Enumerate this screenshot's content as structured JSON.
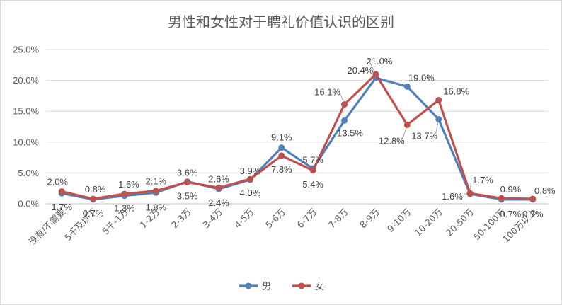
{
  "chart_data": {
    "type": "line",
    "title": "男性和女性对于聘礼价值认识的区别",
    "categories": [
      "没有/不需要",
      "5千及以下",
      "5千-1万",
      "1-2万",
      "2-3万",
      "3-4万",
      "4-5万",
      "5-6万",
      "6-7万",
      "7-8万",
      "8-9万",
      "9-10万",
      "10-20万",
      "20-50万",
      "50-100万",
      "100万以上"
    ],
    "y_ticks": [
      "0.0%",
      "5.0%",
      "10.0%",
      "15.0%",
      "20.0%",
      "25.0%"
    ],
    "ylim": [
      0,
      25
    ],
    "grid": true,
    "legend_position": "bottom",
    "series": [
      {
        "name": "男",
        "color": "#4f81bd",
        "values": [
          1.7,
          0.7,
          1.3,
          1.8,
          3.6,
          2.4,
          3.9,
          9.1,
          5.7,
          13.5,
          20.4,
          19.0,
          13.7,
          1.6,
          0.7,
          0.7
        ],
        "labels": [
          "1.7%",
          "0.7%",
          "1.3%",
          "1.8%",
          "3.6%",
          "2.4%",
          "3.9%",
          "9.1%",
          "5.7%",
          "13.5%",
          "20.4%",
          "19.0%",
          "13.7%",
          "1.6%",
          "0.7%",
          "0.7%"
        ]
      },
      {
        "name": "女",
        "color": "#c0504d",
        "values": [
          2.0,
          0.8,
          1.6,
          2.1,
          3.5,
          2.6,
          4.0,
          7.8,
          5.4,
          16.1,
          21.0,
          12.8,
          16.8,
          1.7,
          0.9,
          0.8
        ],
        "labels": [
          "2.0%",
          "0.8%",
          "1.6%",
          "2.1%",
          "3.5%",
          "2.6%",
          "4.0%",
          "7.8%",
          "5.4%",
          "16.1%",
          "21.0%",
          "12.8%",
          "16.8%",
          "1.7%",
          "0.9%",
          "0.8%"
        ]
      }
    ]
  }
}
